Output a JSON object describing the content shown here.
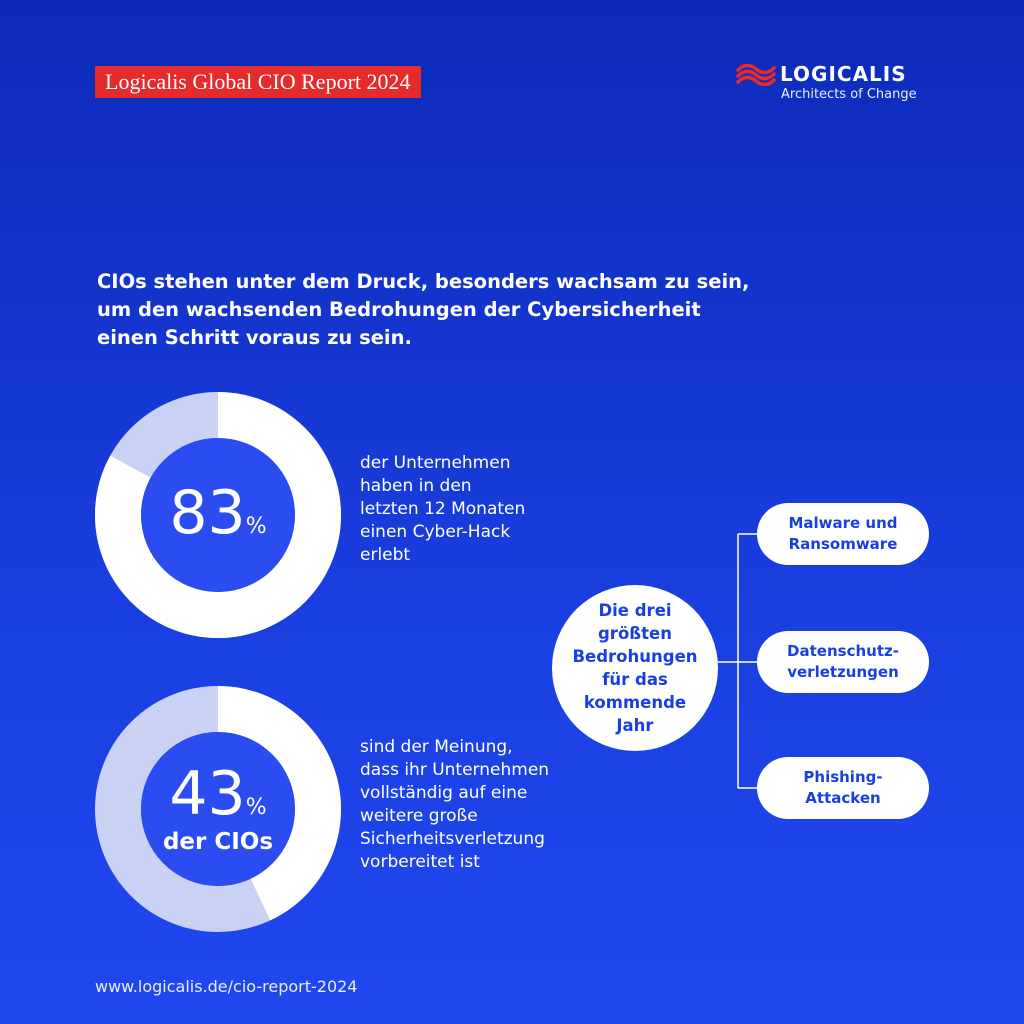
{
  "header": {
    "report_tag": "Logicalis Global CIO Report 2024",
    "logo_wordmark": "LOGICALIS",
    "logo_tagline": "Architects of Change"
  },
  "intro": {
    "lines": [
      "CIOs stehen unter dem Druck, besonders wachsam zu sein,",
      "um den wachsenden Bedrohungen der Cybersicherheit",
      "einen Schritt voraus zu sein."
    ]
  },
  "stats": [
    {
      "value": 83,
      "number": "83",
      "unit": "%",
      "subtitle": "",
      "description": [
        "der Unternehmen",
        "haben in den",
        "letzten 12 Monaten",
        "einen Cyber-Hack",
        "erlebt"
      ]
    },
    {
      "value": 43,
      "number": "43",
      "unit": "%",
      "subtitle": "der CIOs",
      "description": [
        "sind der Meinung,",
        "dass ihr Unternehmen",
        "vollständig auf eine",
        "weitere große",
        "Sicherheitsverletzung",
        "vorbereitet ist"
      ]
    }
  ],
  "threats": {
    "center_lines": [
      "Die drei",
      "größten",
      "Bedrohungen",
      "für das",
      "kommende",
      "Jahr"
    ],
    "items": [
      {
        "lines": [
          "Malware und",
          "Ransomware"
        ]
      },
      {
        "lines": [
          "Datenschutz-",
          "verletzungen"
        ]
      },
      {
        "lines": [
          "Phishing-",
          "Attacken"
        ]
      }
    ]
  },
  "footer": {
    "url": "www.logicalis.de/cio-report-2024"
  },
  "colors": {
    "background": "#1a3fe0",
    "accent_red": "#e52b2b",
    "donut_fill": "#ffffff",
    "donut_rest": "#c9d1f5",
    "donut_center": "#2b4cf0"
  }
}
